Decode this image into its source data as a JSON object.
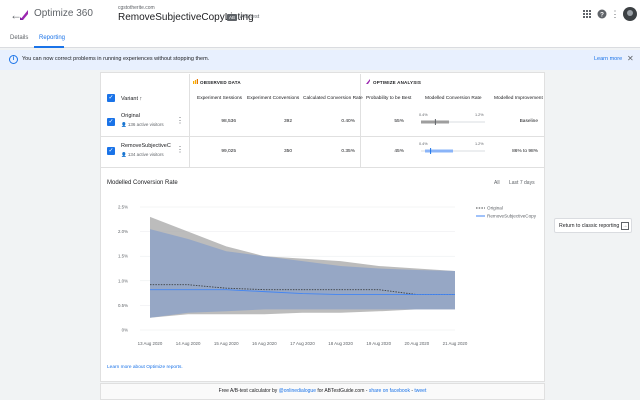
{
  "app": {
    "name": "Optimize 360",
    "account": "cgstotherite.com",
    "experiment_title": "RemoveSubjectiveCopyListing",
    "badge": "AB",
    "experiment_type": "A/B test"
  },
  "tabs": [
    {
      "label": "Details"
    },
    {
      "label": "Reporting"
    }
  ],
  "banner": {
    "text": "You can now correct problems in running experiences without stopping them.",
    "link": "Learn more"
  },
  "sections": {
    "observed": "OBSERVED DATA",
    "analysis": "OPTIMIZE ANALYSIS"
  },
  "columns": {
    "variant": "Variant ↑",
    "sessions": "Experiment Sessions",
    "conversions": "Experiment Conversions",
    "rate": "Calculated Conversion Rate",
    "probability": "Probability to be Best",
    "modelled_rate": "Modelled Conversion Rate",
    "improvement": "Modelled Improvement"
  },
  "variants": [
    {
      "name": "Original",
      "visitors": "136 active visitors",
      "sessions": "98,536",
      "conversions": "392",
      "rate": "0.40%",
      "probability": "55%",
      "range_low": "0.4%",
      "range_high": "1.2%",
      "improvement": "Baseline",
      "ci": [
        0.4,
        0.75
      ],
      "median": 0.58
    },
    {
      "name": "RemoveSubjectiveC",
      "visitors": "134 active visitors",
      "sessions": "99,025",
      "conversions": "350",
      "rate": "0.35%",
      "probability": "45%",
      "range_low": "0.4%",
      "range_high": "1.2%",
      "improvement": "86% to 98%",
      "ci": [
        0.45,
        0.8
      ],
      "median": 0.52
    }
  ],
  "chart": {
    "title": "Modelled Conversion Rate",
    "range_all": "All",
    "range_7": "Last 7 days",
    "learn_link": "Learn more about Optimize reports."
  },
  "chart_data": {
    "type": "area",
    "x": [
      "13 Aug 2020",
      "14 Aug 2020",
      "15 Aug 2020",
      "16 Aug 2020",
      "17 Aug 2020",
      "18 Aug 2020",
      "19 Aug 2020",
      "20 Aug 2020",
      "21 Aug 2020"
    ],
    "yticks": [
      "2.5%",
      "2.0%",
      "1.5%",
      "1.0%",
      "0.5%",
      "0%"
    ],
    "ylim": [
      0,
      2.5
    ],
    "series": [
      {
        "name": "Original",
        "values": [
          0.92,
          0.92,
          0.85,
          0.82,
          0.82,
          0.82,
          0.82,
          0.72,
          0.72
        ],
        "upper": [
          2.3,
          2.0,
          1.7,
          1.5,
          1.45,
          1.4,
          1.3,
          1.25,
          1.2
        ],
        "lower": [
          0.25,
          0.32,
          0.32,
          0.32,
          0.35,
          0.35,
          0.38,
          0.42,
          0.42
        ],
        "color": "#3c4043"
      },
      {
        "name": "RemoveSubjectiveCopy",
        "values": [
          0.82,
          0.82,
          0.82,
          0.78,
          0.74,
          0.72,
          0.72,
          0.72,
          0.72
        ],
        "upper": [
          2.05,
          1.85,
          1.6,
          1.5,
          1.4,
          1.3,
          1.25,
          1.22,
          1.2
        ],
        "lower": [
          0.25,
          0.35,
          0.38,
          0.42,
          0.42,
          0.42,
          0.42,
          0.42,
          0.42
        ],
        "color": "#4285f4"
      }
    ]
  },
  "side": {
    "classic_label": "Return to classic reporting"
  },
  "footer": {
    "prefix": "Free A/B-test calculator by ",
    "author": "@onlinedialogue",
    "middle": " for ABTestGuide.com - ",
    "share": "share on facebook",
    "sep": " - ",
    "tweet": "tweet"
  },
  "colors": {
    "accent": "#1a73e8",
    "original_band": "#b0b0b0",
    "variant_band": "#8fa3c7"
  }
}
